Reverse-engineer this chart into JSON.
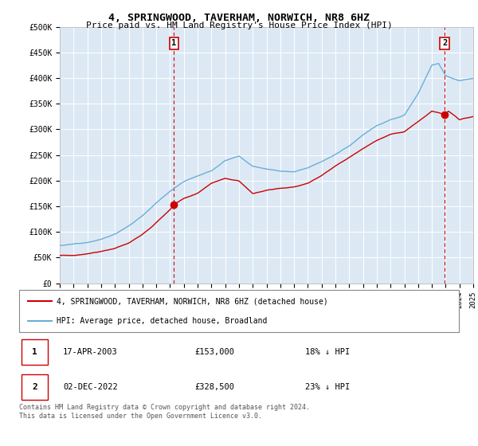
{
  "title": "4, SPRINGWOOD, TAVERHAM, NORWICH, NR8 6HZ",
  "subtitle": "Price paid vs. HM Land Registry's House Price Index (HPI)",
  "xlim_start": 1995.0,
  "xlim_end": 2025.0,
  "ylim_min": 0,
  "ylim_max": 500000,
  "yticks": [
    0,
    50000,
    100000,
    150000,
    200000,
    250000,
    300000,
    350000,
    400000,
    450000,
    500000
  ],
  "ytick_labels": [
    "£0",
    "£50K",
    "£100K",
    "£150K",
    "£200K",
    "£250K",
    "£300K",
    "£350K",
    "£400K",
    "£450K",
    "£500K"
  ],
  "hpi_color": "#6baed6",
  "hpi_fill_color": "#c6dbef",
  "price_color": "#cc0000",
  "vline_color": "#cc0000",
  "marker1_date": 2003.29,
  "marker1_price": 153000,
  "marker1_label": "1",
  "marker2_date": 2022.92,
  "marker2_price": 328500,
  "marker2_label": "2",
  "legend_line1": "4, SPRINGWOOD, TAVERHAM, NORWICH, NR8 6HZ (detached house)",
  "legend_line2": "HPI: Average price, detached house, Broadland",
  "table_row1": [
    "1",
    "17-APR-2003",
    "£153,000",
    "18% ↓ HPI"
  ],
  "table_row2": [
    "2",
    "02-DEC-2022",
    "£328,500",
    "23% ↓ HPI"
  ],
  "footnote": "Contains HM Land Registry data © Crown copyright and database right 2024.\nThis data is licensed under the Open Government Licence v3.0.",
  "background_color": "#ffffff",
  "plot_bg_color": "#dce9f5",
  "grid_color": "#ffffff"
}
